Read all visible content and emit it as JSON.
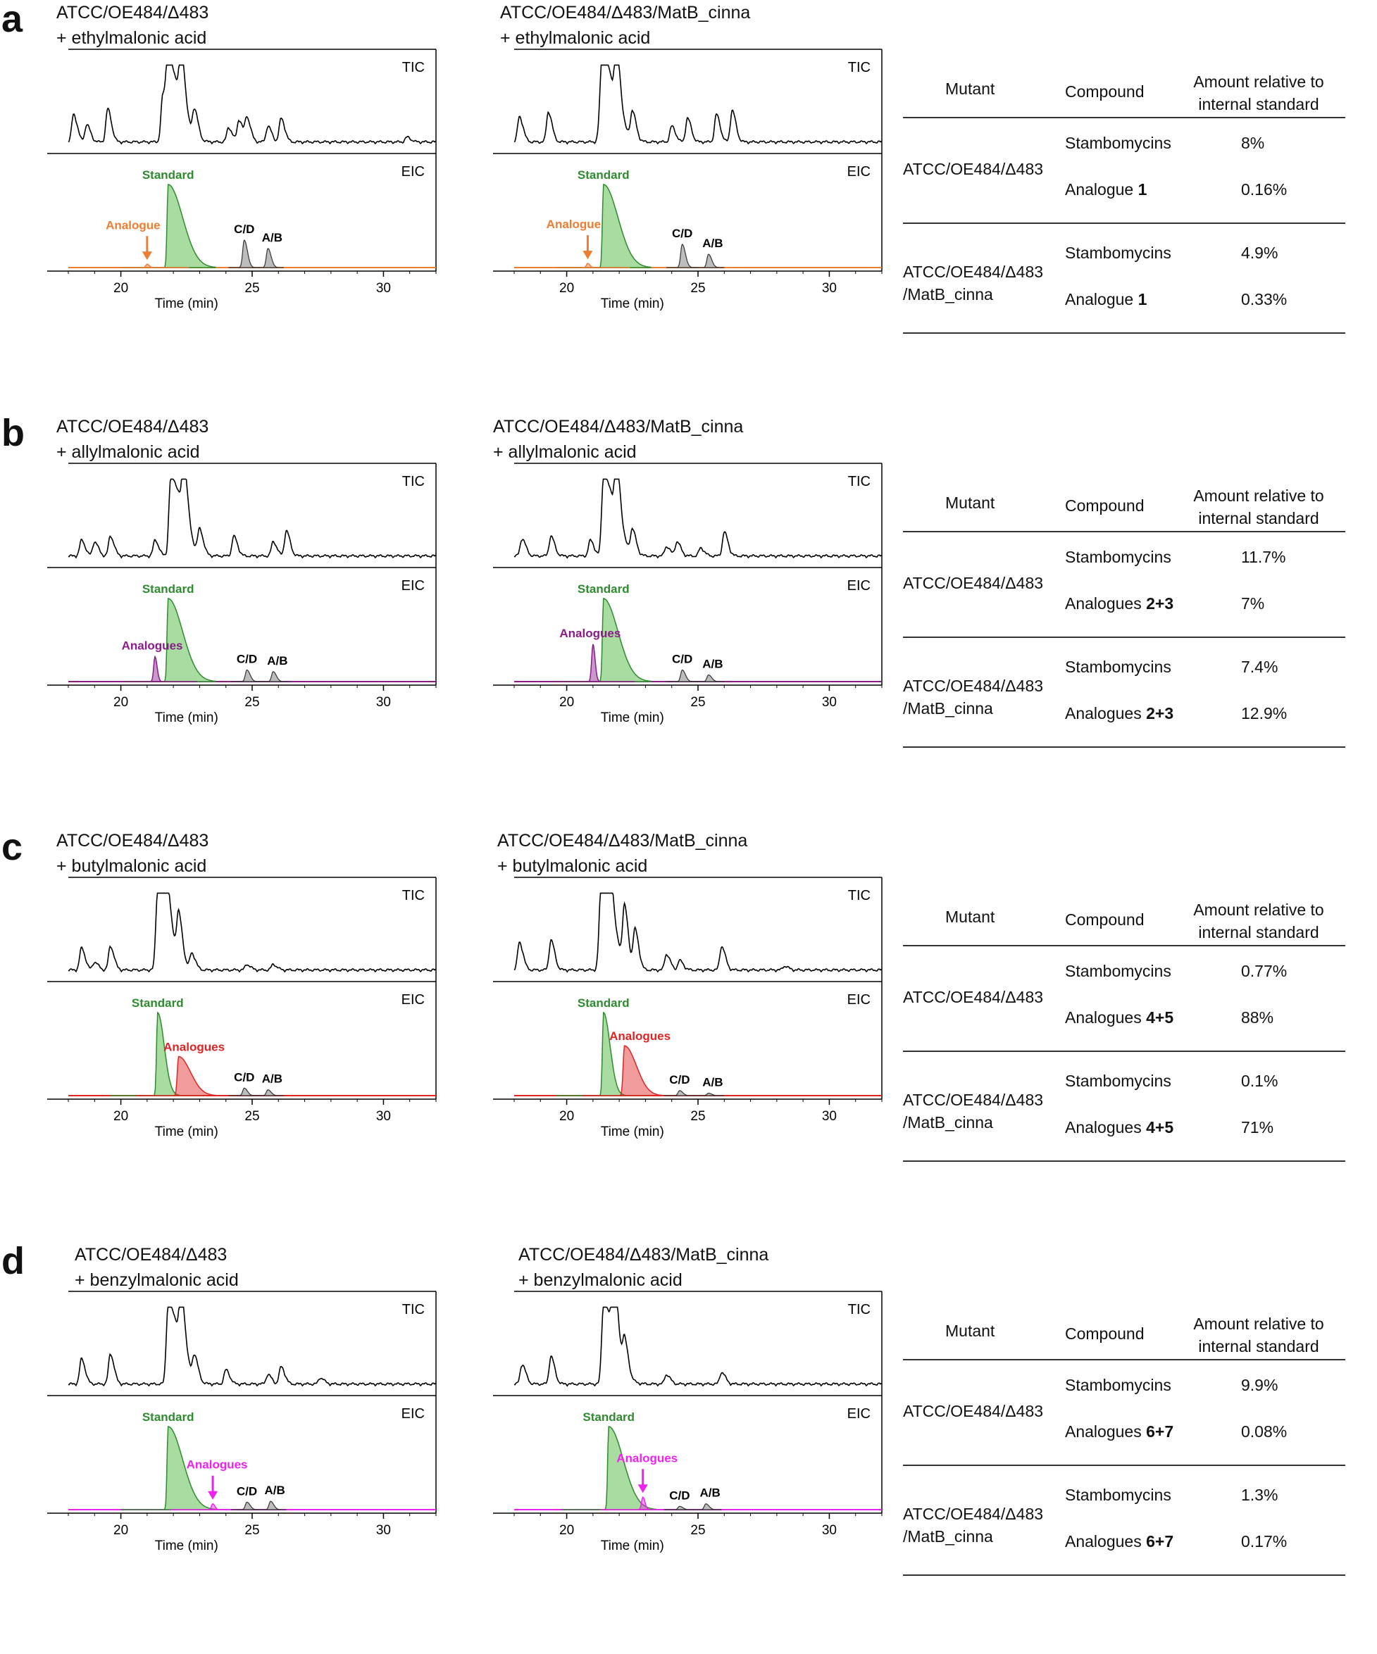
{
  "table_headers": {
    "mutant": "Mutant",
    "compound": "Compound",
    "amount": "Amount relative to internal standard"
  },
  "axis": {
    "xlabel": "Time (min)",
    "ticks": [
      "20",
      "25",
      "30"
    ]
  },
  "trace_labels": {
    "tic": "TIC",
    "eic": "EIC",
    "standard": "Standard",
    "cd": "C/D",
    "ab": "A/B"
  },
  "colors": {
    "standard": "#2e8b2e",
    "cd_ab": "#555555",
    "tic": "#000000"
  },
  "panels": [
    {
      "letter": "a",
      "left_title": [
        "ATCC/OE484/Δ483",
        "+ ethylmalonic acid"
      ],
      "right_title": [
        "ATCC/OE484/Δ483/MatB_cinna",
        "+ ethylmalonic acid"
      ],
      "analogue_label": "Analogue",
      "analogue_color": "#ed7d31",
      "rows": [
        {
          "mutant": [
            "ATCC/OE484/Δ483"
          ],
          "c1": "Stambomycins",
          "v1": "8%",
          "c2_prefix": "Analogue ",
          "c2_num": "1",
          "v2": "0.16%"
        },
        {
          "mutant": [
            "ATCC/OE484/Δ483",
            "/MatB_cinna"
          ],
          "c1": "Stambomycins",
          "v1": "4.9%",
          "c2_prefix": "Analogue ",
          "c2_num": "1",
          "v2": "0.33%"
        }
      ]
    },
    {
      "letter": "b",
      "left_title": [
        "ATCC/OE484/Δ483",
        "+ allylmalonic acid"
      ],
      "right_title": [
        "ATCC/OE484/Δ483/MatB_cinna",
        "+ allylmalonic acid"
      ],
      "analogue_label": "Analogues",
      "analogue_color": "#8b1a8b",
      "rows": [
        {
          "mutant": [
            "ATCC/OE484/Δ483"
          ],
          "c1": "Stambomycins",
          "v1": "11.7%",
          "c2_prefix": "Analogues ",
          "c2_num": "2+3",
          "v2": "7%"
        },
        {
          "mutant": [
            "ATCC/OE484/Δ483",
            "/MatB_cinna"
          ],
          "c1": "Stambomycins",
          "v1": "7.4%",
          "c2_prefix": "Analogues ",
          "c2_num": "2+3",
          "v2": "12.9%"
        }
      ]
    },
    {
      "letter": "c",
      "left_title": [
        "ATCC/OE484/Δ483",
        "+ butylmalonic acid"
      ],
      "right_title": [
        "ATCC/OE484/Δ483/MatB_cinna",
        "+ butylmalonic acid"
      ],
      "analogue_label": "Analogues",
      "analogue_color": "#e02424",
      "rows": [
        {
          "mutant": [
            "ATCC/OE484/Δ483"
          ],
          "c1": "Stambomycins",
          "v1": "0.77%",
          "c2_prefix": "Analogues ",
          "c2_num": "4+5",
          "v2": "88%"
        },
        {
          "mutant": [
            "ATCC/OE484/Δ483",
            "/MatB_cinna"
          ],
          "c1": "Stambomycins",
          "v1": "0.1%",
          "c2_prefix": "Analogues ",
          "c2_num": "4+5",
          "v2": "71%"
        }
      ]
    },
    {
      "letter": "d",
      "left_title": [
        "ATCC/OE484/Δ483",
        "+ benzylmalonic acid"
      ],
      "right_title": [
        "ATCC/OE484/Δ483/MatB_cinna",
        "+ benzylmalonic acid"
      ],
      "analogue_label": "Analogues",
      "analogue_color": "#ee22ee",
      "rows": [
        {
          "mutant": [
            "ATCC/OE484/Δ483"
          ],
          "c1": "Stambomycins",
          "v1": "9.9%",
          "c2_prefix": "Analogues ",
          "c2_num": "6+7",
          "v2": "0.08%"
        },
        {
          "mutant": [
            "ATCC/OE484/Δ483",
            "/MatB_cinna"
          ],
          "c1": "Stambomycins",
          "v1": "1.3%",
          "c2_prefix": "Analogues ",
          "c2_num": "6+7",
          "v2": "0.17%"
        }
      ]
    }
  ],
  "chart_data": [
    {
      "type": "line",
      "panel": "a",
      "strain": "ATCC/OE484/Δ483",
      "feed": "ethylmalonic acid",
      "xlabel": "Time (min)",
      "xlim": [
        18,
        32
      ],
      "xticks": [
        20,
        25,
        30
      ],
      "tic_peaks": [
        [
          18.2,
          0.35
        ],
        [
          18.7,
          0.22
        ],
        [
          19.5,
          0.42
        ],
        [
          21.6,
          0.6
        ],
        [
          21.8,
          1.0
        ],
        [
          22.3,
          0.7
        ],
        [
          22.8,
          0.35
        ],
        [
          24.1,
          0.18
        ],
        [
          24.5,
          0.28
        ],
        [
          24.8,
          0.3
        ],
        [
          25.6,
          0.2
        ],
        [
          26.1,
          0.3
        ],
        [
          30.9,
          0.06
        ]
      ],
      "eic": {
        "standard_peak_min": 21.8,
        "standard_height": 1.0,
        "analogue_peak_min": 21.0,
        "analogue_height": 0.04,
        "cd_peak_min": 24.7,
        "cd_height": 0.33,
        "ab_peak_min": 25.6,
        "ab_height": 0.23
      }
    },
    {
      "type": "line",
      "panel": "a",
      "strain": "ATCC/OE484/Δ483/MatB_cinna",
      "feed": "ethylmalonic acid",
      "xlabel": "Time (min)",
      "xlim": [
        18,
        32
      ],
      "xticks": [
        20,
        25,
        30
      ],
      "tic_peaks": [
        [
          18.2,
          0.32
        ],
        [
          19.3,
          0.38
        ],
        [
          21.3,
          0.55
        ],
        [
          21.4,
          1.0
        ],
        [
          21.9,
          0.7
        ],
        [
          22.5,
          0.35
        ],
        [
          24.0,
          0.2
        ],
        [
          24.6,
          0.3
        ],
        [
          25.7,
          0.35
        ],
        [
          26.3,
          0.4
        ]
      ],
      "eic": {
        "standard_peak_min": 21.4,
        "standard_height": 1.0,
        "analogue_peak_min": 20.8,
        "analogue_height": 0.05,
        "cd_peak_min": 24.4,
        "cd_height": 0.28,
        "ab_peak_min": 25.4,
        "ab_height": 0.16
      }
    },
    {
      "type": "line",
      "panel": "b",
      "strain": "ATCC/OE484/Δ483",
      "feed": "allylmalonic acid",
      "xlabel": "Time (min)",
      "xlim": [
        18,
        32
      ],
      "xticks": [
        20,
        25,
        30
      ],
      "tic_peaks": [
        [
          18.5,
          0.2
        ],
        [
          19.0,
          0.18
        ],
        [
          19.6,
          0.25
        ],
        [
          21.3,
          0.2
        ],
        [
          21.9,
          1.0
        ],
        [
          22.4,
          0.7
        ],
        [
          23.0,
          0.3
        ],
        [
          24.3,
          0.25
        ],
        [
          25.8,
          0.18
        ],
        [
          26.3,
          0.32
        ]
      ],
      "eic": {
        "standard_peak_min": 21.8,
        "standard_height": 1.0,
        "analogue_peak_min": 21.3,
        "analogue_height": 0.3,
        "cd_peak_min": 24.8,
        "cd_height": 0.14,
        "ab_peak_min": 25.8,
        "ab_height": 0.12
      }
    },
    {
      "type": "line",
      "panel": "b",
      "strain": "ATCC/OE484/Δ483/MatB_cinna",
      "feed": "allylmalonic acid",
      "xlabel": "Time (min)",
      "xlim": [
        18,
        32
      ],
      "xticks": [
        20,
        25,
        30
      ],
      "tic_peaks": [
        [
          18.3,
          0.22
        ],
        [
          19.4,
          0.25
        ],
        [
          20.9,
          0.2
        ],
        [
          21.4,
          1.0
        ],
        [
          21.9,
          0.7
        ],
        [
          22.5,
          0.3
        ],
        [
          23.8,
          0.12
        ],
        [
          24.2,
          0.18
        ],
        [
          25.1,
          0.1
        ],
        [
          26.0,
          0.3
        ]
      ],
      "eic": {
        "standard_peak_min": 21.4,
        "standard_height": 1.0,
        "analogue_peak_min": 21.0,
        "analogue_height": 0.45,
        "cd_peak_min": 24.4,
        "cd_height": 0.14,
        "ab_peak_min": 25.4,
        "ab_height": 0.08
      }
    },
    {
      "type": "line",
      "panel": "c",
      "strain": "ATCC/OE484/Δ483",
      "feed": "butylmalonic acid",
      "xlabel": "Time (min)",
      "xlim": [
        18,
        32
      ],
      "xticks": [
        20,
        25,
        30
      ],
      "tic_peaks": [
        [
          18.5,
          0.28
        ],
        [
          19.0,
          0.1
        ],
        [
          19.6,
          0.3
        ],
        [
          21.4,
          1.0
        ],
        [
          21.7,
          0.6
        ],
        [
          22.2,
          0.55
        ],
        [
          22.7,
          0.2
        ],
        [
          24.8,
          0.07
        ],
        [
          25.8,
          0.07
        ]
      ],
      "eic": {
        "standard_peak_min": 21.4,
        "standard_height": 1.0,
        "analogue_peak_min": 22.2,
        "analogue_height": 0.47,
        "cd_peak_min": 24.7,
        "cd_height": 0.09,
        "ab_peak_min": 25.6,
        "ab_height": 0.07
      }
    },
    {
      "type": "line",
      "panel": "c",
      "strain": "ATCC/OE484/Δ483/MatB_cinna",
      "feed": "butylmalonic acid",
      "xlabel": "Time (min)",
      "xlim": [
        18,
        32
      ],
      "xticks": [
        20,
        25,
        30
      ],
      "tic_peaks": [
        [
          18.2,
          0.35
        ],
        [
          19.4,
          0.38
        ],
        [
          21.3,
          1.0
        ],
        [
          21.6,
          0.8
        ],
        [
          22.2,
          0.7
        ],
        [
          22.6,
          0.5
        ],
        [
          23.8,
          0.2
        ],
        [
          24.3,
          0.12
        ],
        [
          25.9,
          0.3
        ],
        [
          28.3,
          0.05
        ]
      ],
      "eic": {
        "standard_peak_min": 21.4,
        "standard_height": 1.0,
        "analogue_peak_min": 22.2,
        "analogue_height": 0.6,
        "cd_peak_min": 24.3,
        "cd_height": 0.06,
        "ab_peak_min": 25.4,
        "ab_height": 0.03
      }
    },
    {
      "type": "line",
      "panel": "d",
      "strain": "ATCC/OE484/Δ483",
      "feed": "benzylmalonic acid",
      "xlabel": "Time (min)",
      "xlim": [
        18,
        32
      ],
      "xticks": [
        20,
        25,
        30
      ],
      "tic_peaks": [
        [
          18.5,
          0.32
        ],
        [
          19.6,
          0.38
        ],
        [
          21.8,
          1.0
        ],
        [
          22.3,
          0.7
        ],
        [
          22.8,
          0.3
        ],
        [
          24.0,
          0.18
        ],
        [
          25.6,
          0.12
        ],
        [
          26.1,
          0.22
        ],
        [
          27.6,
          0.08
        ]
      ],
      "eic": {
        "standard_peak_min": 21.8,
        "standard_height": 1.0,
        "analogue_peak_min": 23.5,
        "analogue_height": 0.07,
        "cd_peak_min": 24.8,
        "cd_height": 0.09,
        "ab_peak_min": 25.7,
        "ab_height": 0.1
      }
    },
    {
      "type": "line",
      "panel": "d",
      "strain": "ATCC/OE484/Δ483/MatB_cinna",
      "feed": "benzylmalonic acid",
      "xlabel": "Time (min)",
      "xlim": [
        18,
        32
      ],
      "xticks": [
        20,
        25,
        30
      ],
      "tic_peaks": [
        [
          18.3,
          0.25
        ],
        [
          19.4,
          0.35
        ],
        [
          21.4,
          1.0
        ],
        [
          21.8,
          0.8
        ],
        [
          22.2,
          0.4
        ],
        [
          23.8,
          0.12
        ],
        [
          25.9,
          0.15
        ]
      ],
      "eic": {
        "standard_peak_min": 21.6,
        "standard_height": 1.0,
        "analogue_peak_min": 22.9,
        "analogue_height": 0.15,
        "cd_peak_min": 24.3,
        "cd_height": 0.04,
        "ab_peak_min": 25.3,
        "ab_height": 0.07
      }
    }
  ]
}
